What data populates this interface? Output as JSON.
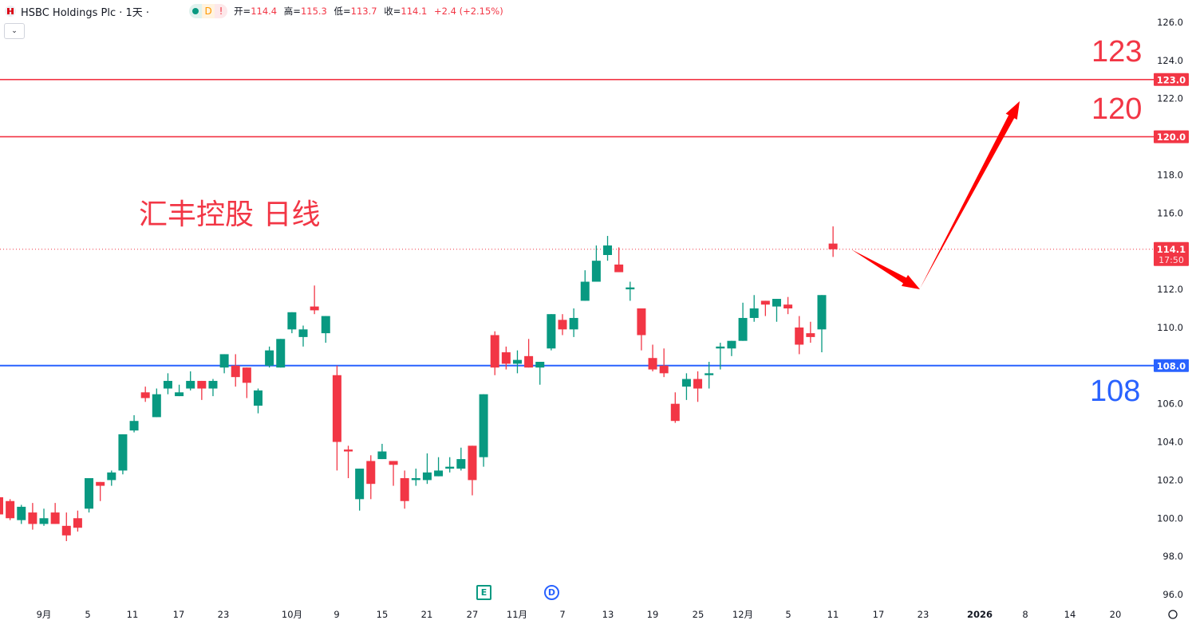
{
  "header": {
    "symbol_title": "HSBC Holdings Plc · 1天 ·",
    "status_icons": [
      {
        "icon": "market-open-dot-icon",
        "text": "",
        "color": "#089981",
        "bg": "#e0f2ee"
      },
      {
        "icon": "delayed-data-icon",
        "text": "D",
        "color": "#ff9800",
        "bg": "#fff3e0"
      },
      {
        "icon": "warning-icon",
        "text": "!",
        "color": "#f23645",
        "bg": "#fde8ea"
      }
    ],
    "ohlc": {
      "open_label": "开=",
      "open": "114.4",
      "high_label": "高=",
      "high": "115.3",
      "low_label": "低=",
      "low": "113.7",
      "close_label": "收=",
      "close": "114.1",
      "change": "+2.4 (+2.15%)"
    },
    "collapse_icon": "chevron-down-icon"
  },
  "annotations": {
    "note_text": "汇丰控股 日线",
    "level_123": "123",
    "level_120": "120",
    "level_108": "108"
  },
  "markers": {
    "earnings": "E",
    "dividend": "D"
  },
  "colors": {
    "up": "#089981",
    "down": "#f23645",
    "support": "#2962ff",
    "resistance": "#f23645",
    "arrow": "#ff0000"
  },
  "chart_data": {
    "type": "candlestick",
    "ylim": [
      96,
      126
    ],
    "y_ticks": [
      "126.0",
      "124.0",
      "122.0",
      "118.0",
      "116.0",
      "112.0",
      "110.0",
      "106.0",
      "104.0",
      "102.0",
      "100.0",
      "98.0",
      "96.0"
    ],
    "x_tick_labels": [
      "9月",
      "5",
      "11",
      "17",
      "23",
      "10月",
      "9",
      "15",
      "21",
      "27",
      "11月",
      "7",
      "13",
      "19",
      "25",
      "12月",
      "5",
      "11",
      "17",
      "23",
      "2026",
      "8",
      "14",
      "20"
    ],
    "horizontal_lines": [
      {
        "price": 123.0,
        "label": "123.0",
        "color": "#f23645"
      },
      {
        "price": 120.0,
        "label": "120.0",
        "color": "#f23645"
      },
      {
        "price": 108.0,
        "label": "108.0",
        "color": "#2962ff"
      }
    ],
    "last_price": {
      "price": 114.1,
      "label": "114.1",
      "countdown": "17:50"
    },
    "ohlc": [
      [
        101.1,
        101.2,
        100.0,
        100.2
      ],
      [
        100.9,
        101.0,
        99.9,
        100.0
      ],
      [
        99.9,
        100.7,
        99.7,
        100.6
      ],
      [
        100.3,
        100.8,
        99.4,
        99.7
      ],
      [
        99.7,
        100.5,
        99.6,
        100.0
      ],
      [
        100.3,
        100.8,
        99.7,
        99.7
      ],
      [
        99.6,
        100.3,
        98.8,
        99.1
      ],
      [
        100.0,
        100.4,
        99.3,
        99.5
      ],
      [
        100.5,
        102.1,
        100.3,
        102.1
      ],
      [
        101.9,
        101.9,
        100.9,
        101.7
      ],
      [
        102.0,
        102.5,
        101.7,
        102.4
      ],
      [
        102.5,
        104.4,
        102.3,
        104.4
      ],
      [
        104.6,
        105.4,
        104.5,
        105.1
      ],
      [
        106.6,
        106.9,
        106.1,
        106.3
      ],
      [
        105.3,
        106.8,
        105.3,
        106.5
      ],
      [
        106.8,
        107.6,
        106.5,
        107.2
      ],
      [
        106.4,
        107.0,
        106.4,
        106.6
      ],
      [
        106.8,
        107.7,
        106.7,
        107.2
      ],
      [
        107.2,
        107.2,
        106.2,
        106.8
      ],
      [
        106.8,
        107.3,
        106.4,
        107.2
      ],
      [
        107.9,
        108.6,
        107.6,
        108.6
      ],
      [
        108.0,
        108.6,
        106.9,
        107.4
      ],
      [
        107.9,
        107.9,
        106.3,
        107.1
      ],
      [
        105.9,
        106.8,
        105.5,
        106.7
      ],
      [
        108.0,
        109.0,
        107.9,
        108.8
      ],
      [
        107.9,
        109.4,
        107.9,
        109.4
      ],
      [
        109.9,
        110.8,
        109.7,
        110.8
      ],
      [
        109.5,
        110.1,
        109.0,
        109.9
      ],
      [
        111.1,
        112.2,
        110.7,
        110.9
      ],
      [
        109.7,
        110.6,
        109.2,
        110.6
      ],
      [
        107.5,
        108.0,
        102.5,
        104.0
      ],
      [
        103.6,
        103.8,
        102.1,
        103.5
      ],
      [
        101.0,
        102.6,
        100.4,
        102.6
      ],
      [
        103.0,
        103.3,
        101.0,
        101.8
      ],
      [
        103.1,
        103.9,
        103.1,
        103.5
      ],
      [
        103.0,
        103.0,
        101.7,
        102.8
      ],
      [
        102.1,
        102.5,
        100.5,
        100.9
      ],
      [
        102.0,
        102.6,
        101.7,
        102.1
      ],
      [
        102.0,
        103.4,
        101.8,
        102.4
      ],
      [
        102.2,
        103.2,
        102.2,
        102.5
      ],
      [
        102.6,
        103.2,
        102.4,
        102.7
      ],
      [
        102.6,
        103.7,
        102.5,
        103.1
      ],
      [
        103.8,
        103.8,
        101.2,
        102.0
      ],
      [
        103.2,
        106.5,
        102.7,
        106.5
      ],
      [
        109.6,
        109.8,
        107.5,
        107.9
      ],
      [
        108.7,
        109.0,
        107.8,
        108.1
      ],
      [
        108.1,
        108.8,
        107.6,
        108.3
      ],
      [
        108.5,
        109.4,
        107.9,
        107.9
      ],
      [
        107.9,
        108.2,
        107.0,
        108.2
      ],
      [
        108.9,
        110.7,
        108.8,
        110.7
      ],
      [
        110.4,
        110.7,
        109.6,
        109.9
      ],
      [
        109.9,
        111.0,
        109.5,
        110.5
      ],
      [
        111.4,
        113.0,
        111.4,
        112.4
      ],
      [
        112.4,
        114.3,
        112.4,
        113.5
      ],
      [
        113.8,
        114.8,
        113.5,
        114.3
      ],
      [
        113.3,
        114.2,
        112.9,
        112.9
      ],
      [
        112.0,
        112.4,
        111.4,
        112.1
      ],
      [
        111.0,
        111.0,
        108.8,
        109.6
      ],
      [
        108.4,
        109.1,
        107.7,
        107.8
      ],
      [
        108.0,
        108.9,
        107.4,
        107.6
      ],
      [
        106.0,
        106.6,
        105.0,
        105.1
      ],
      [
        106.9,
        107.6,
        106.2,
        107.3
      ],
      [
        107.3,
        107.7,
        106.1,
        106.8
      ],
      [
        107.5,
        108.2,
        106.8,
        107.6
      ],
      [
        108.9,
        109.2,
        107.8,
        109.0
      ],
      [
        108.9,
        109.3,
        108.5,
        109.3
      ],
      [
        109.3,
        111.3,
        109.3,
        110.5
      ],
      [
        110.5,
        111.7,
        110.3,
        111.0
      ],
      [
        111.4,
        111.4,
        110.6,
        111.2
      ],
      [
        111.1,
        111.5,
        110.3,
        111.5
      ],
      [
        111.2,
        111.6,
        110.7,
        111.0
      ],
      [
        110.0,
        110.6,
        108.6,
        109.1
      ],
      [
        109.7,
        110.3,
        109.2,
        109.5
      ],
      [
        109.9,
        111.7,
        108.7,
        111.7
      ],
      [
        114.4,
        115.3,
        113.7,
        114.1
      ]
    ]
  }
}
